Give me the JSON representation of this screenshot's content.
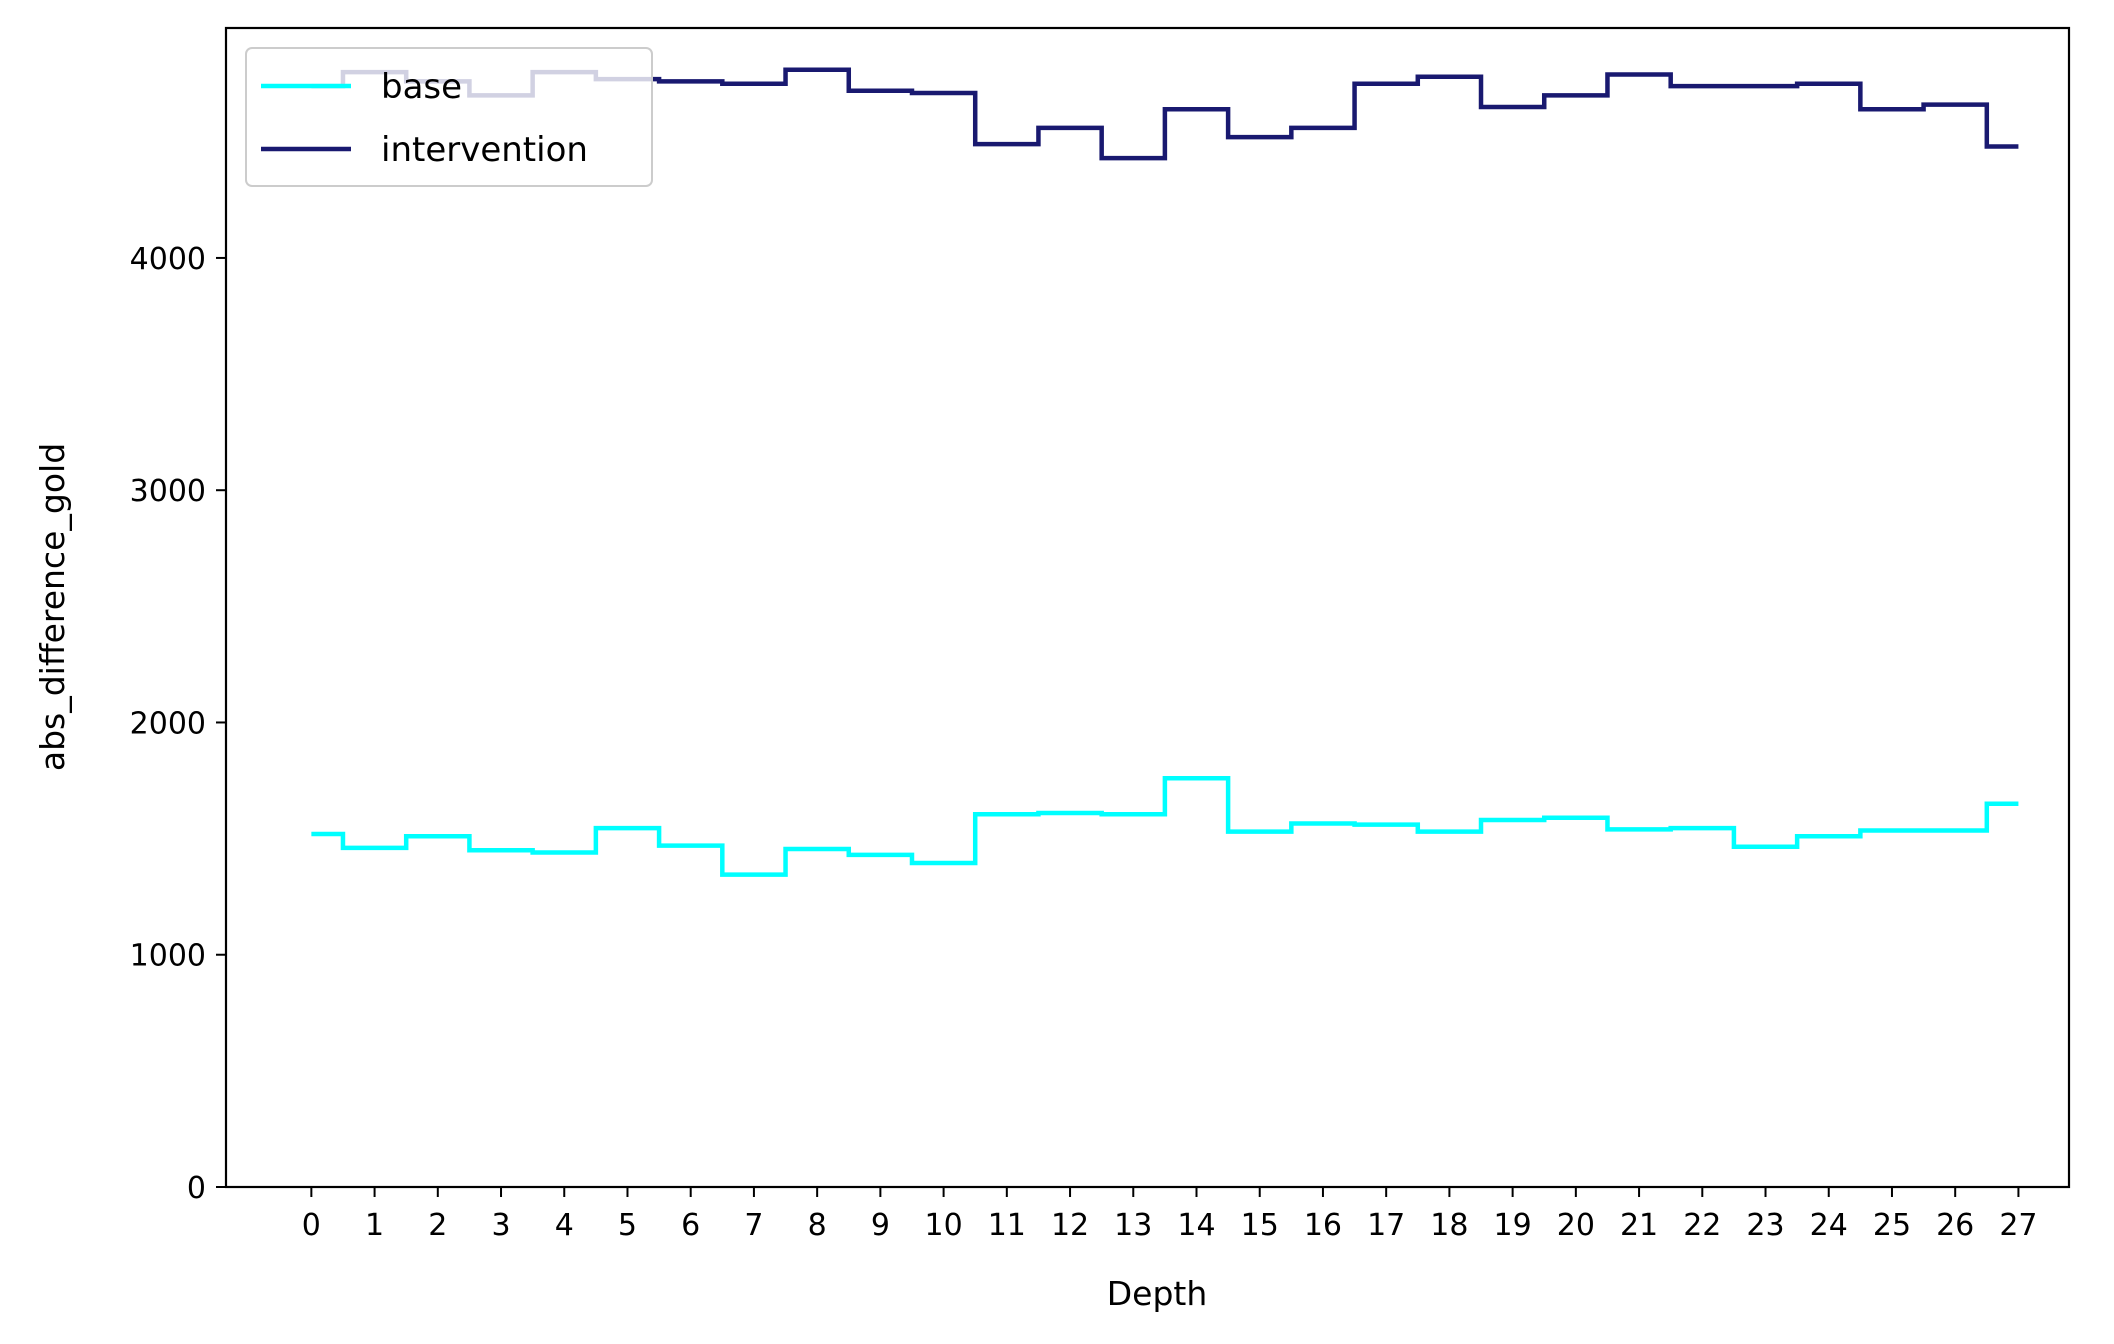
{
  "chart_data": {
    "type": "line",
    "drawstyle": "steps-mid",
    "title": "",
    "xlabel": "Depth",
    "ylabel": "abs_difference_gold",
    "x": [
      0,
      1,
      2,
      3,
      4,
      5,
      6,
      7,
      8,
      9,
      10,
      11,
      12,
      13,
      14,
      15,
      16,
      17,
      18,
      19,
      20,
      21,
      22,
      23,
      24,
      25,
      26,
      27
    ],
    "x_ticks": [
      "0",
      "1",
      "2",
      "3",
      "4",
      "5",
      "6",
      "7",
      "8",
      "9",
      "10",
      "11",
      "12",
      "13",
      "14",
      "15",
      "16",
      "17",
      "18",
      "19",
      "20",
      "21",
      "22",
      "23",
      "24",
      "25",
      "26",
      "27"
    ],
    "y_ticks": [
      0,
      1000,
      2000,
      3000,
      4000
    ],
    "y_tick_labels": [
      "0",
      "1000",
      "2000",
      "3000",
      "4000"
    ],
    "xlim": [
      -1.35,
      27.8
    ],
    "ylim": [
      0,
      4990
    ],
    "grid": false,
    "legend": "top-left",
    "series": [
      {
        "name": "base",
        "color": "#00ffff",
        "values": [
          1520,
          1460,
          1510,
          1450,
          1440,
          1545,
          1470,
          1345,
          1455,
          1430,
          1395,
          1605,
          1610,
          1605,
          1760,
          1530,
          1565,
          1560,
          1530,
          1580,
          1590,
          1540,
          1545,
          1465,
          1510,
          1535,
          1535,
          1650
        ]
      },
      {
        "name": "intervention",
        "color": "#191970",
        "values": [
          4740,
          4800,
          4760,
          4700,
          4800,
          4770,
          4760,
          4750,
          4810,
          4720,
          4710,
          4490,
          4560,
          4430,
          4640,
          4520,
          4560,
          4750,
          4780,
          4650,
          4700,
          4790,
          4740,
          4740,
          4750,
          4640,
          4660,
          4480
        ]
      }
    ]
  }
}
